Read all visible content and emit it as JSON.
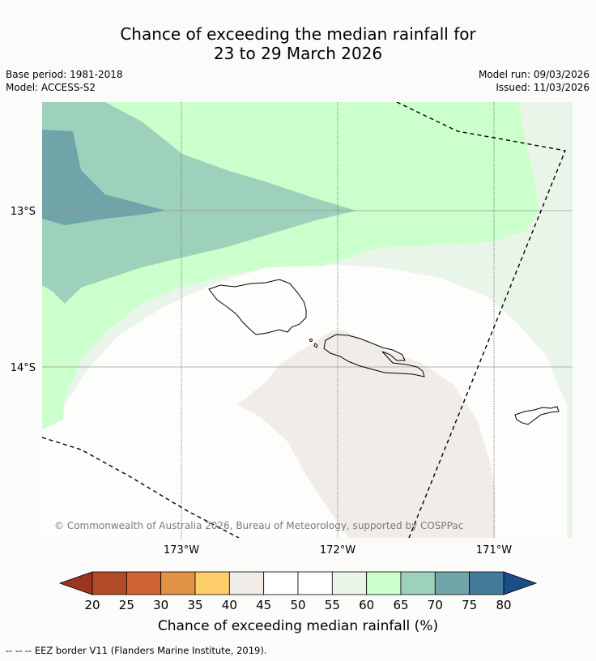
{
  "title": {
    "line1": "Chance of exceeding the median rainfall for",
    "line2": "23 to 29 March 2026"
  },
  "meta": {
    "base_period": "Base period: 1981-2018",
    "model": "Model: ACCESS-S2",
    "model_run": "Model run: 09/03/2026",
    "issued": "Issued: 11/03/2026"
  },
  "map": {
    "lat_labels": [
      "13°S",
      "14°S"
    ],
    "lon_labels": [
      "173°W",
      "172°W",
      "171°W"
    ],
    "copyright": "© Commonwealth of Australia 2026, Bureau of Meteorology, supported by COSPPac"
  },
  "colorbar": {
    "ticks": [
      "20",
      "25",
      "30",
      "35",
      "40",
      "45",
      "50",
      "55",
      "60",
      "65",
      "70",
      "75",
      "80"
    ],
    "colors": {
      "under": "#9b3520",
      "20-25": "#b24a28",
      "25-30": "#cd6431",
      "30-35": "#e29244",
      "35-40": "#fdcd69",
      "40-45": "#f1ece8",
      "45-50": "#ffffff",
      "50-55": "#ffffff",
      "55-60": "#eaf5ea",
      "60-65": "#cbffcb",
      "65-70": "#9dd1bc",
      "70-75": "#6fa5a9",
      "75-80": "#447a9b",
      "over": "#1a4e89"
    },
    "label": "Chance of exceeding median rainfall (%)"
  },
  "legend_note": "--  --  -- EEZ border V11 (Flanders Marine Institute, 2019)."
}
